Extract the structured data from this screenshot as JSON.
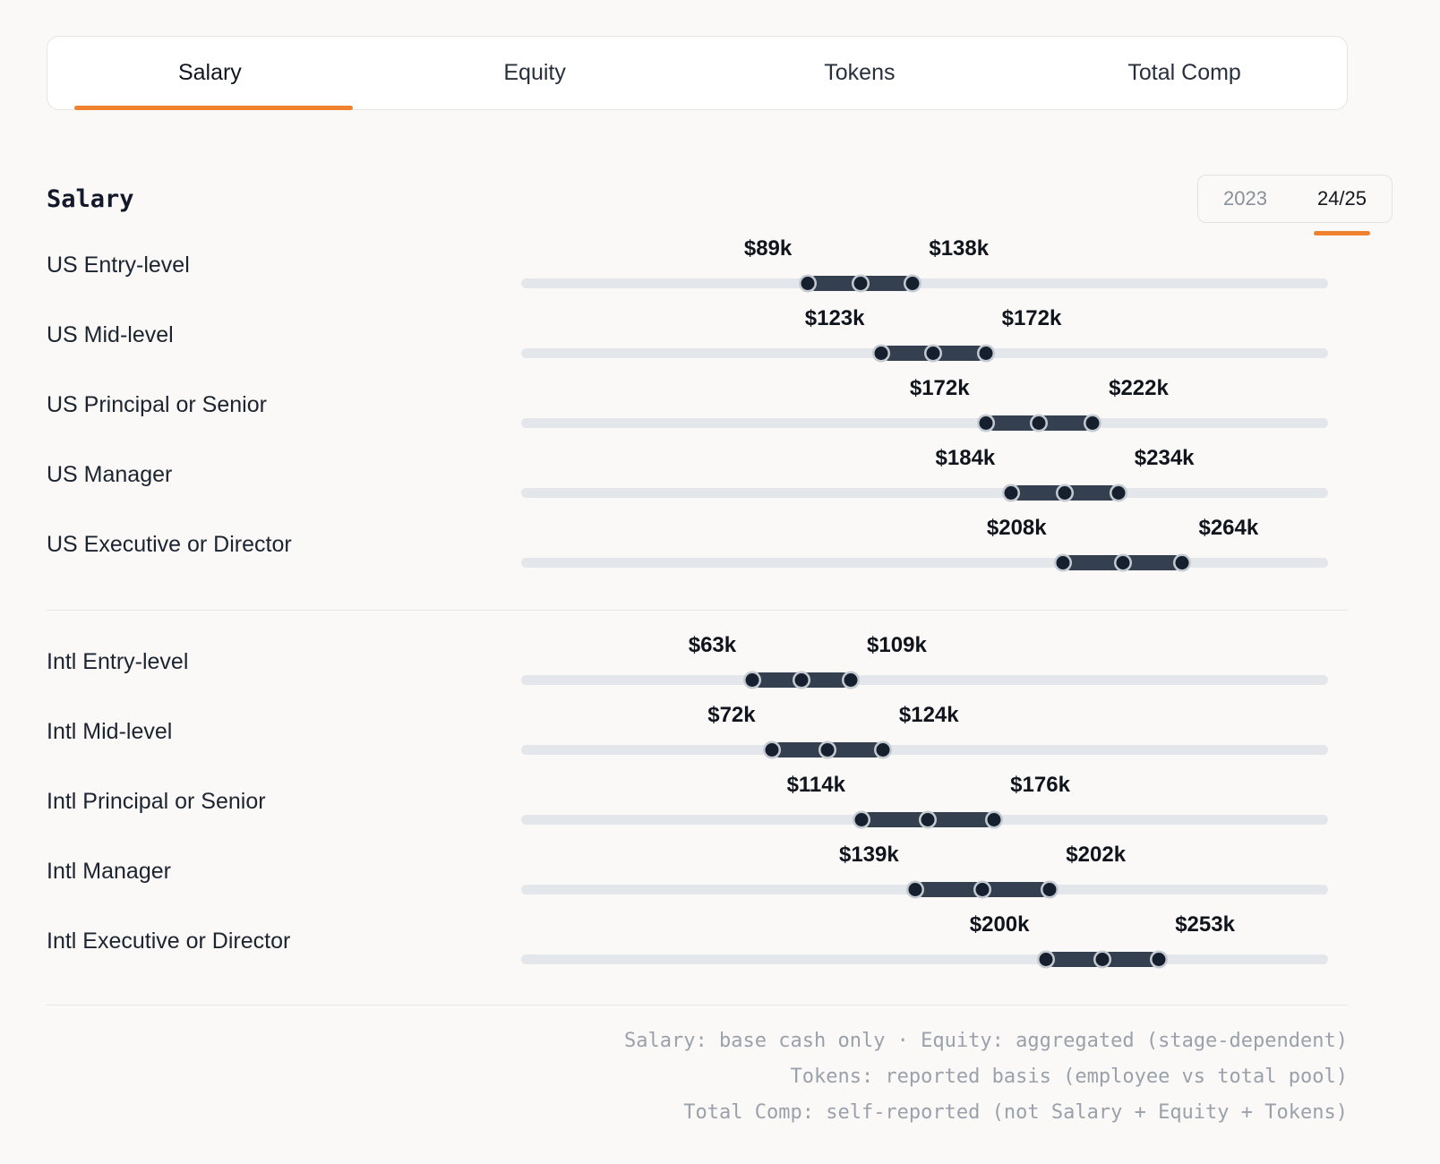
{
  "tabs": [
    {
      "label": "Salary",
      "active": true
    },
    {
      "label": "Equity",
      "active": false
    },
    {
      "label": "Tokens",
      "active": false
    },
    {
      "label": "Total Comp",
      "active": false
    }
  ],
  "section": {
    "title": "Salary"
  },
  "year_toggle": {
    "options": [
      {
        "label": "2023",
        "active": false
      },
      {
        "label": "24/25",
        "active": true
      }
    ]
  },
  "chart_data": {
    "type": "range-dot-plot",
    "unit": "USD thousands per year",
    "track_domain": [
      -45,
      332
    ],
    "legend_position": "none",
    "groups": [
      {
        "name": "US",
        "rows": [
          {
            "label": "US Entry-level",
            "low": 89,
            "high": 138,
            "low_label": "$89k",
            "high_label": "$138k"
          },
          {
            "label": "US Mid-level",
            "low": 123,
            "high": 172,
            "low_label": "$123k",
            "high_label": "$172k"
          },
          {
            "label": "US Principal or Senior",
            "low": 172,
            "high": 222,
            "low_label": "$172k",
            "high_label": "$222k"
          },
          {
            "label": "US Manager",
            "low": 184,
            "high": 234,
            "low_label": "$184k",
            "high_label": "$234k"
          },
          {
            "label": "US Executive or Director",
            "low": 208,
            "high": 264,
            "low_label": "$208k",
            "high_label": "$264k"
          }
        ]
      },
      {
        "name": "Intl",
        "rows": [
          {
            "label": "Intl Entry-level",
            "low": 63,
            "high": 109,
            "low_label": "$63k",
            "high_label": "$109k"
          },
          {
            "label": "Intl Mid-level",
            "low": 72,
            "high": 124,
            "low_label": "$72k",
            "high_label": "$124k"
          },
          {
            "label": "Intl Principal or Senior",
            "low": 114,
            "high": 176,
            "low_label": "$114k",
            "high_label": "$176k"
          },
          {
            "label": "Intl Manager",
            "low": 139,
            "high": 202,
            "low_label": "$139k",
            "high_label": "$202k"
          },
          {
            "label": "Intl Executive or Director",
            "low": 200,
            "high": 253,
            "low_label": "$200k",
            "high_label": "$253k"
          }
        ]
      }
    ]
  },
  "footnotes": [
    "Salary: base cash only · Equity: aggregated (stage-dependent)",
    "Tokens: reported basis (employee vs total pool)",
    "Total Comp: self-reported (not Salary + Equity + Tokens)"
  ],
  "colors": {
    "accent": "#f0812f",
    "bar": "#343f50",
    "track": "#e3e6ea",
    "dot": "#161f2d",
    "dot_ring": "#c3cad2"
  }
}
